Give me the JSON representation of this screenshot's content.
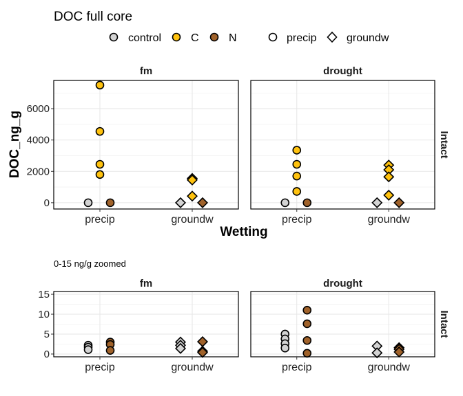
{
  "chart_data": [
    {
      "type": "scatter",
      "title": "DOC full core",
      "xlabel": "Wetting",
      "ylabel": "DOC_ng_g",
      "categories": [
        "precip",
        "groundw"
      ],
      "yticks": [
        "0",
        "2000",
        "4000",
        "6000"
      ],
      "ytick_values": [
        0,
        2000,
        4000,
        6000
      ],
      "ylim": [
        -400,
        7800
      ],
      "grid": true,
      "strip_right": "Intact",
      "legend": {
        "position": "top",
        "fill": [
          {
            "label": "control",
            "color": "#D3D3D3"
          },
          {
            "label": "C",
            "color": "#FFC20E"
          },
          {
            "label": "N",
            "color": "#A0622A"
          }
        ],
        "shape": [
          {
            "label": "precip",
            "shape": "circle"
          },
          {
            "label": "groundw",
            "shape": "diamond"
          }
        ]
      },
      "panels": [
        {
          "label": "fm",
          "points": [
            {
              "x": "precip",
              "group": "control",
              "y": 0
            },
            {
              "x": "precip",
              "group": "C",
              "y": 7500
            },
            {
              "x": "precip",
              "group": "C",
              "y": 4550
            },
            {
              "x": "precip",
              "group": "C",
              "y": 2450
            },
            {
              "x": "precip",
              "group": "C",
              "y": 1800
            },
            {
              "x": "precip",
              "group": "N",
              "y": 0
            },
            {
              "x": "groundw",
              "group": "control",
              "y": 0
            },
            {
              "x": "groundw",
              "group": "C",
              "y": 1550
            },
            {
              "x": "groundw",
              "group": "C",
              "y": 1450
            },
            {
              "x": "groundw",
              "group": "C",
              "y": 420
            },
            {
              "x": "groundw",
              "group": "N",
              "y": 0
            }
          ]
        },
        {
          "label": "drought",
          "points": [
            {
              "x": "precip",
              "group": "control",
              "y": 0
            },
            {
              "x": "precip",
              "group": "C",
              "y": 3350
            },
            {
              "x": "precip",
              "group": "C",
              "y": 2450
            },
            {
              "x": "precip",
              "group": "C",
              "y": 1700
            },
            {
              "x": "precip",
              "group": "C",
              "y": 720
            },
            {
              "x": "precip",
              "group": "N",
              "y": 0
            },
            {
              "x": "groundw",
              "group": "control",
              "y": 0
            },
            {
              "x": "groundw",
              "group": "C",
              "y": 2400
            },
            {
              "x": "groundw",
              "group": "C",
              "y": 2100
            },
            {
              "x": "groundw",
              "group": "C",
              "y": 1650
            },
            {
              "x": "groundw",
              "group": "C",
              "y": 480
            },
            {
              "x": "groundw",
              "group": "N",
              "y": 0
            }
          ]
        }
      ]
    },
    {
      "type": "scatter",
      "title": "0-15 ng/g zoomed",
      "xlabel": "",
      "ylabel": "",
      "categories": [
        "precip",
        "groundw"
      ],
      "yticks": [
        "0",
        "5",
        "10",
        "15"
      ],
      "ytick_values": [
        0,
        5,
        10,
        15
      ],
      "ylim": [
        -0.7,
        15.7
      ],
      "grid": true,
      "strip_right": "Intact",
      "panels": [
        {
          "label": "fm",
          "points": [
            {
              "x": "precip",
              "group": "control",
              "y": 2.2
            },
            {
              "x": "precip",
              "group": "control",
              "y": 1.7
            },
            {
              "x": "precip",
              "group": "control",
              "y": 1.1
            },
            {
              "x": "precip",
              "group": "N",
              "y": 3.0
            },
            {
              "x": "precip",
              "group": "N",
              "y": 2.4
            },
            {
              "x": "precip",
              "group": "N",
              "y": 0.9
            },
            {
              "x": "groundw",
              "group": "control",
              "y": 3.0
            },
            {
              "x": "groundw",
              "group": "control",
              "y": 2.2
            },
            {
              "x": "groundw",
              "group": "control",
              "y": 1.4
            },
            {
              "x": "groundw",
              "group": "N",
              "y": 3.1
            },
            {
              "x": "groundw",
              "group": "N",
              "y": 0.7
            },
            {
              "x": "groundw",
              "group": "N",
              "y": 0.4
            }
          ]
        },
        {
          "label": "drought",
          "points": [
            {
              "x": "precip",
              "group": "control",
              "y": 5.0
            },
            {
              "x": "precip",
              "group": "control",
              "y": 3.8
            },
            {
              "x": "precip",
              "group": "control",
              "y": 2.6
            },
            {
              "x": "precip",
              "group": "control",
              "y": 1.5
            },
            {
              "x": "precip",
              "group": "N",
              "y": 11.0
            },
            {
              "x": "precip",
              "group": "N",
              "y": 7.6
            },
            {
              "x": "precip",
              "group": "N",
              "y": 3.4
            },
            {
              "x": "precip",
              "group": "N",
              "y": 0.2
            },
            {
              "x": "groundw",
              "group": "control",
              "y": 2.0
            },
            {
              "x": "groundw",
              "group": "control",
              "y": 0.3
            },
            {
              "x": "groundw",
              "group": "N",
              "y": 1.6
            },
            {
              "x": "groundw",
              "group": "N",
              "y": 1.2
            },
            {
              "x": "groundw",
              "group": "N",
              "y": 0.5
            }
          ]
        }
      ]
    }
  ]
}
